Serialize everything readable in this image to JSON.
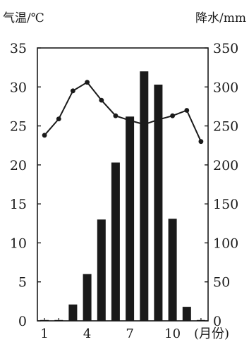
{
  "chart_data": {
    "type": "bar",
    "title": "",
    "y_left_label": "气温/℃",
    "y_right_label": "降水/mm",
    "x_unit": "(月份)",
    "months": [
      1,
      2,
      3,
      4,
      5,
      6,
      7,
      8,
      9,
      10,
      11,
      12
    ],
    "x_tick_labels": [
      "1",
      "4",
      "7",
      "10"
    ],
    "x_tick_months": [
      1,
      4,
      7,
      10
    ],
    "y_left_ticks": [
      0,
      5,
      10,
      15,
      20,
      25,
      30,
      35
    ],
    "y_right_ticks": [
      0,
      50,
      100,
      150,
      200,
      250,
      300,
      350
    ],
    "y_left_lim": [
      0,
      35
    ],
    "y_right_lim": [
      0,
      350
    ],
    "series": [
      {
        "kind": "bar",
        "axis": "right",
        "values": [
          0,
          1,
          21,
          60,
          130,
          203,
          262,
          320,
          303,
          131,
          18,
          0
        ]
      },
      {
        "kind": "line",
        "axis": "left",
        "values": [
          23.8,
          25.9,
          29.5,
          30.6,
          28.3,
          26.3,
          25.7,
          25.2,
          25.8,
          26.3,
          27.0,
          23.0
        ]
      }
    ],
    "grid": false,
    "colors": {
      "bar": "#1a1a1a",
      "line": "#1a1a1a",
      "axis": "#1a1a1a"
    }
  }
}
